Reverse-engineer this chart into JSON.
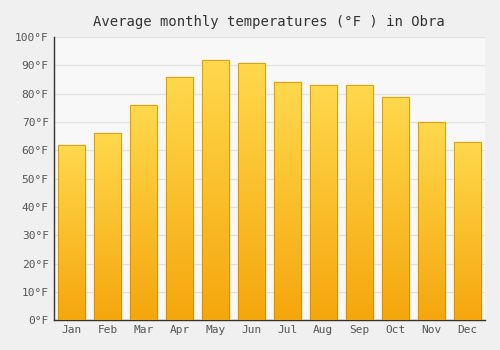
{
  "months": [
    "Jan",
    "Feb",
    "Mar",
    "Apr",
    "May",
    "Jun",
    "Jul",
    "Aug",
    "Sep",
    "Oct",
    "Nov",
    "Dec"
  ],
  "values": [
    62,
    66,
    76,
    86,
    92,
    91,
    84,
    83,
    83,
    79,
    70,
    63
  ],
  "bar_color_dark": "#F5A623",
  "bar_color_light": "#FFD060",
  "background_color": "#f0f0f0",
  "plot_bg_color": "#f8f8f8",
  "grid_color": "#e0e0e0",
  "title": "Average monthly temperatures (°F ) in Obra",
  "title_fontsize": 10,
  "tick_fontsize": 8,
  "ylim": [
    0,
    100
  ],
  "yticks": [
    0,
    10,
    20,
    30,
    40,
    50,
    60,
    70,
    80,
    90,
    100
  ],
  "ylabel_format": "°F"
}
